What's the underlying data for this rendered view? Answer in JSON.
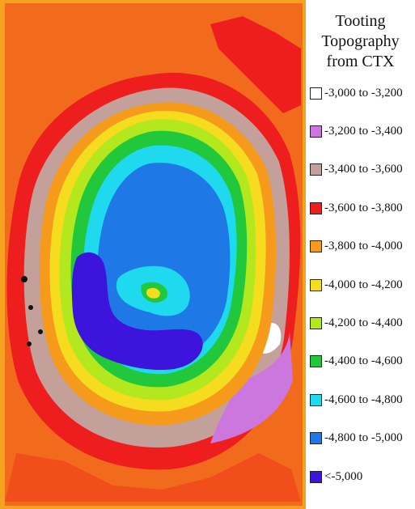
{
  "legend": {
    "title_lines": [
      "Tooting",
      "Topography",
      "from CTX"
    ],
    "items": [
      {
        "label": "-3,000 to -3,200",
        "color": "#ffffff"
      },
      {
        "label": "-3,200 to -3,400",
        "color": "#cc77dd"
      },
      {
        "label": "-3,400 to -3,600",
        "color": "#c4a09a"
      },
      {
        "label": "-3,600 to -3,800",
        "color": "#ee1e1e"
      },
      {
        "label": "-3,800 to -4,000",
        "color": "#f59a1b"
      },
      {
        "label": "-4,000 to -4,200",
        "color": "#f5dc1e"
      },
      {
        "label": "-4,200 to -4,400",
        "color": "#b4e81e"
      },
      {
        "label": "-4,400 to -4,600",
        "color": "#22c83c"
      },
      {
        "label": "-4,600 to -4,800",
        "color": "#1fd9ee"
      },
      {
        "label": "-4,800 to -5,000",
        "color": "#1e78e6"
      },
      {
        "label": "<-5,000",
        "color": "#3c14dc"
      }
    ]
  },
  "map": {
    "background_color": "#f26a1c",
    "frame_color": "#f5a21e"
  }
}
